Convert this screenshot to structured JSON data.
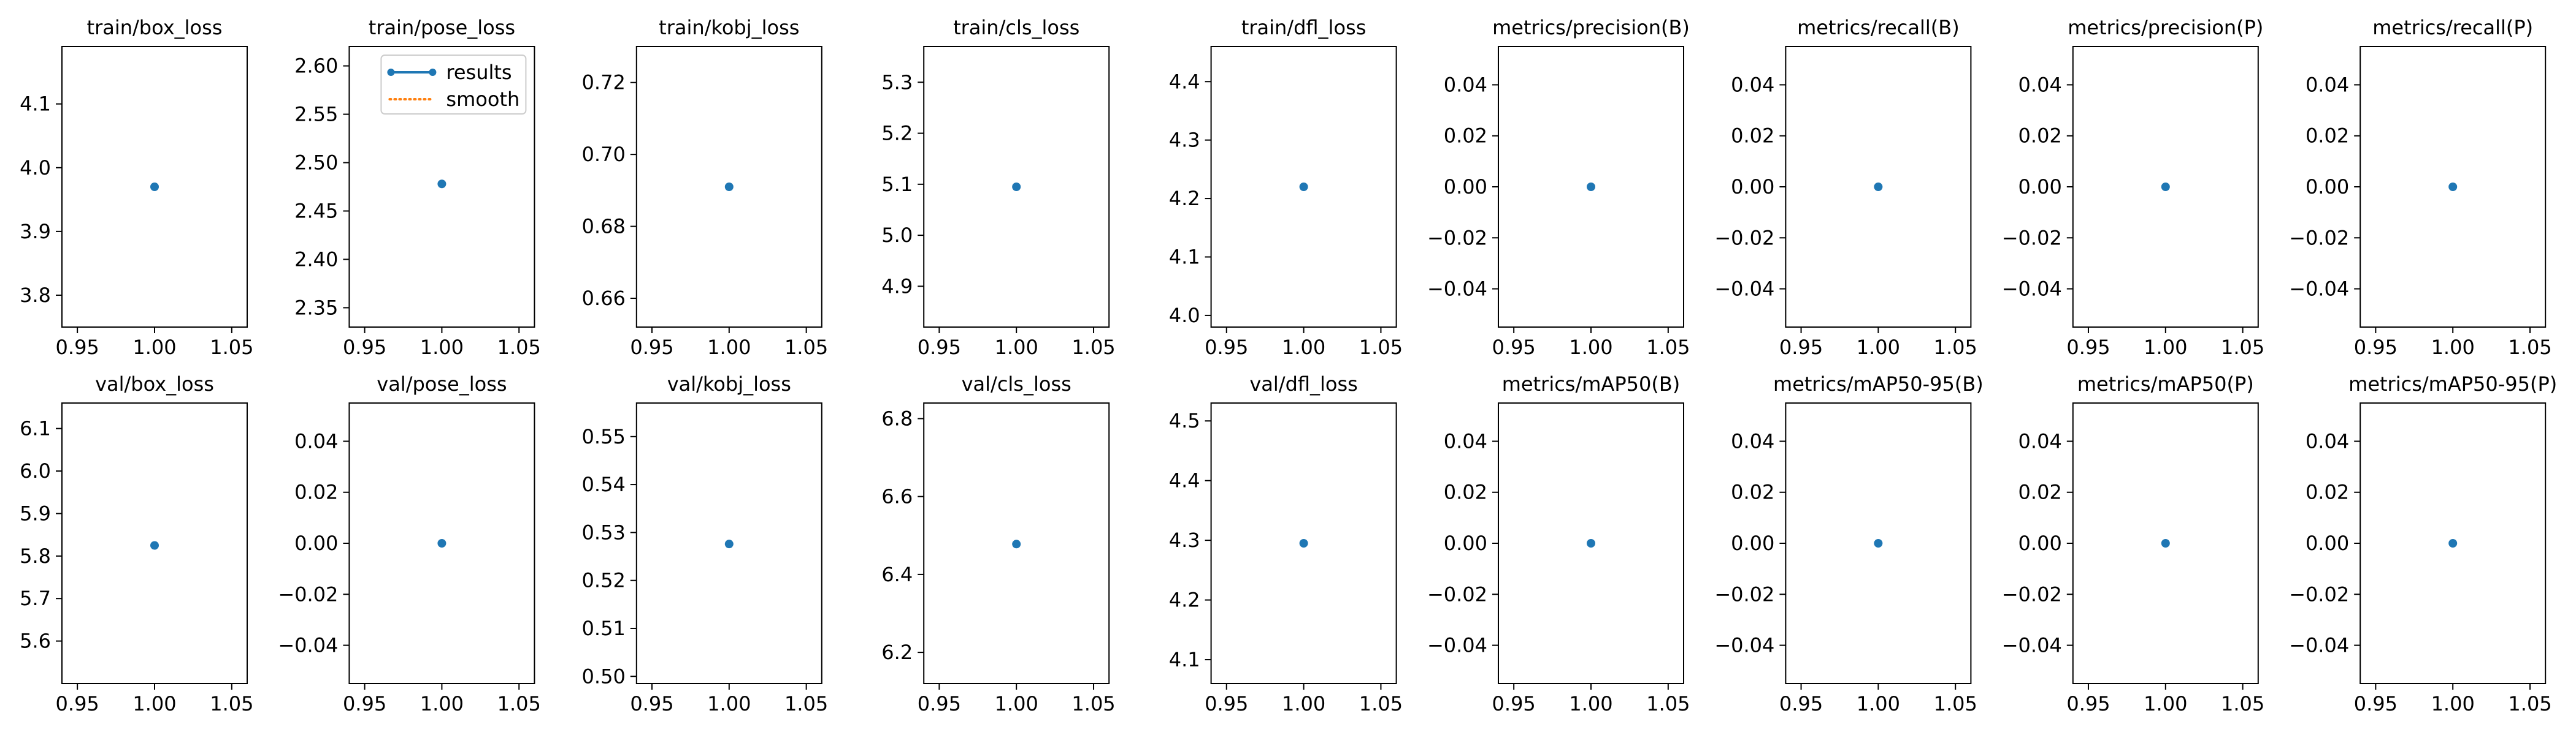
{
  "chart_data": [
    {
      "type": "line",
      "title": "train/box_loss",
      "x": [
        1
      ],
      "series": [
        {
          "name": "results",
          "values": [
            3.97
          ]
        }
      ],
      "xlim": [
        0.94,
        1.06
      ],
      "ylim": [
        3.75,
        4.19
      ],
      "xticks": [
        "0.95",
        "1.00",
        "1.05"
      ],
      "yticks": [
        "3.8",
        "3.9",
        "4.0",
        "4.1"
      ],
      "legend": null
    },
    {
      "type": "line",
      "title": "train/pose_loss",
      "x": [
        1
      ],
      "series": [
        {
          "name": "results",
          "values": [
            2.478
          ]
        }
      ],
      "xlim": [
        0.94,
        1.06
      ],
      "ylim": [
        2.33,
        2.62
      ],
      "xticks": [
        "0.95",
        "1.00",
        "1.05"
      ],
      "yticks": [
        "2.35",
        "2.40",
        "2.45",
        "2.50",
        "2.55",
        "2.60"
      ],
      "legend": {
        "placement": "top-right",
        "entries": [
          {
            "label": "results",
            "color": "#1f77b4",
            "style": "solid-marker"
          },
          {
            "label": "smooth",
            "color": "#ff7f0e",
            "style": "dotted"
          }
        ]
      }
    },
    {
      "type": "line",
      "title": "train/kobj_loss",
      "x": [
        1
      ],
      "series": [
        {
          "name": "results",
          "values": [
            0.691
          ]
        }
      ],
      "xlim": [
        0.94,
        1.06
      ],
      "ylim": [
        0.652,
        0.73
      ],
      "xticks": [
        "0.95",
        "1.00",
        "1.05"
      ],
      "yticks": [
        "0.66",
        "0.68",
        "0.70",
        "0.72"
      ],
      "legend": null
    },
    {
      "type": "line",
      "title": "train/cls_loss",
      "x": [
        1
      ],
      "series": [
        {
          "name": "results",
          "values": [
            5.095
          ]
        }
      ],
      "xlim": [
        0.94,
        1.06
      ],
      "ylim": [
        4.82,
        5.37
      ],
      "xticks": [
        "0.95",
        "1.00",
        "1.05"
      ],
      "yticks": [
        "4.9",
        "5.0",
        "5.1",
        "5.2",
        "5.3"
      ],
      "legend": null
    },
    {
      "type": "line",
      "title": "train/dfl_loss",
      "x": [
        1
      ],
      "series": [
        {
          "name": "results",
          "values": [
            4.22
          ]
        }
      ],
      "xlim": [
        0.94,
        1.06
      ],
      "ylim": [
        3.98,
        4.46
      ],
      "xticks": [
        "0.95",
        "1.00",
        "1.05"
      ],
      "yticks": [
        "4.0",
        "4.1",
        "4.2",
        "4.3",
        "4.4"
      ],
      "legend": null
    },
    {
      "type": "line",
      "title": "metrics/precision(B)",
      "x": [
        1
      ],
      "series": [
        {
          "name": "results",
          "values": [
            0.0
          ]
        }
      ],
      "xlim": [
        0.94,
        1.06
      ],
      "ylim": [
        -0.055,
        0.055
      ],
      "xticks": [
        "0.95",
        "1.00",
        "1.05"
      ],
      "yticks": [
        "−0.04",
        "−0.02",
        "0.00",
        "0.02",
        "0.04"
      ],
      "legend": null
    },
    {
      "type": "line",
      "title": "metrics/recall(B)",
      "x": [
        1
      ],
      "series": [
        {
          "name": "results",
          "values": [
            0.0
          ]
        }
      ],
      "xlim": [
        0.94,
        1.06
      ],
      "ylim": [
        -0.055,
        0.055
      ],
      "xticks": [
        "0.95",
        "1.00",
        "1.05"
      ],
      "yticks": [
        "−0.04",
        "−0.02",
        "0.00",
        "0.02",
        "0.04"
      ],
      "legend": null
    },
    {
      "type": "line",
      "title": "metrics/precision(P)",
      "x": [
        1
      ],
      "series": [
        {
          "name": "results",
          "values": [
            0.0
          ]
        }
      ],
      "xlim": [
        0.94,
        1.06
      ],
      "ylim": [
        -0.055,
        0.055
      ],
      "xticks": [
        "0.95",
        "1.00",
        "1.05"
      ],
      "yticks": [
        "−0.04",
        "−0.02",
        "0.00",
        "0.02",
        "0.04"
      ],
      "legend": null
    },
    {
      "type": "line",
      "title": "metrics/recall(P)",
      "x": [
        1
      ],
      "series": [
        {
          "name": "results",
          "values": [
            0.0
          ]
        }
      ],
      "xlim": [
        0.94,
        1.06
      ],
      "ylim": [
        -0.055,
        0.055
      ],
      "xticks": [
        "0.95",
        "1.00",
        "1.05"
      ],
      "yticks": [
        "−0.04",
        "−0.02",
        "0.00",
        "0.02",
        "0.04"
      ],
      "legend": null
    },
    {
      "type": "line",
      "title": "val/box_loss",
      "x": [
        1
      ],
      "series": [
        {
          "name": "results",
          "values": [
            5.825
          ]
        }
      ],
      "xlim": [
        0.94,
        1.06
      ],
      "ylim": [
        5.5,
        6.16
      ],
      "xticks": [
        "0.95",
        "1.00",
        "1.05"
      ],
      "yticks": [
        "5.6",
        "5.7",
        "5.8",
        "5.9",
        "6.0",
        "6.1"
      ],
      "legend": null
    },
    {
      "type": "line",
      "title": "val/pose_loss",
      "x": [
        1
      ],
      "series": [
        {
          "name": "results",
          "values": [
            0.0
          ]
        }
      ],
      "xlim": [
        0.94,
        1.06
      ],
      "ylim": [
        -0.055,
        0.055
      ],
      "xticks": [
        "0.95",
        "1.00",
        "1.05"
      ],
      "yticks": [
        "−0.04",
        "−0.02",
        "0.00",
        "0.02",
        "0.04"
      ],
      "legend": null
    },
    {
      "type": "line",
      "title": "val/kobj_loss",
      "x": [
        1
      ],
      "series": [
        {
          "name": "results",
          "values": [
            0.5276
          ]
        }
      ],
      "xlim": [
        0.94,
        1.06
      ],
      "ylim": [
        0.4985,
        0.557
      ],
      "xticks": [
        "0.95",
        "1.00",
        "1.05"
      ],
      "yticks": [
        "0.50",
        "0.51",
        "0.52",
        "0.53",
        "0.54",
        "0.55"
      ],
      "legend": null
    },
    {
      "type": "line",
      "title": "val/cls_loss",
      "x": [
        1
      ],
      "series": [
        {
          "name": "results",
          "values": [
            6.478
          ]
        }
      ],
      "xlim": [
        0.94,
        1.06
      ],
      "ylim": [
        6.12,
        6.84
      ],
      "xticks": [
        "0.95",
        "1.00",
        "1.05"
      ],
      "yticks": [
        "6.2",
        "6.4",
        "6.6",
        "6.8"
      ],
      "legend": null
    },
    {
      "type": "line",
      "title": "val/dfl_loss",
      "x": [
        1
      ],
      "series": [
        {
          "name": "results",
          "values": [
            4.295
          ]
        }
      ],
      "xlim": [
        0.94,
        1.06
      ],
      "ylim": [
        4.06,
        4.53
      ],
      "xticks": [
        "0.95",
        "1.00",
        "1.05"
      ],
      "yticks": [
        "4.1",
        "4.2",
        "4.3",
        "4.4",
        "4.5"
      ],
      "legend": null
    },
    {
      "type": "line",
      "title": "metrics/mAP50(B)",
      "x": [
        1
      ],
      "series": [
        {
          "name": "results",
          "values": [
            0.0
          ]
        }
      ],
      "xlim": [
        0.94,
        1.06
      ],
      "ylim": [
        -0.055,
        0.055
      ],
      "xticks": [
        "0.95",
        "1.00",
        "1.05"
      ],
      "yticks": [
        "−0.04",
        "−0.02",
        "0.00",
        "0.02",
        "0.04"
      ],
      "legend": null
    },
    {
      "type": "line",
      "title": "metrics/mAP50-95(B)",
      "x": [
        1
      ],
      "series": [
        {
          "name": "results",
          "values": [
            0.0
          ]
        }
      ],
      "xlim": [
        0.94,
        1.06
      ],
      "ylim": [
        -0.055,
        0.055
      ],
      "xticks": [
        "0.95",
        "1.00",
        "1.05"
      ],
      "yticks": [
        "−0.04",
        "−0.02",
        "0.00",
        "0.02",
        "0.04"
      ],
      "legend": null
    },
    {
      "type": "line",
      "title": "metrics/mAP50(P)",
      "x": [
        1
      ],
      "series": [
        {
          "name": "results",
          "values": [
            0.0
          ]
        }
      ],
      "xlim": [
        0.94,
        1.06
      ],
      "ylim": [
        -0.055,
        0.055
      ],
      "xticks": [
        "0.95",
        "1.00",
        "1.05"
      ],
      "yticks": [
        "−0.04",
        "−0.02",
        "0.00",
        "0.02",
        "0.04"
      ],
      "legend": null
    },
    {
      "type": "line",
      "title": "metrics/mAP50-95(P)",
      "x": [
        1
      ],
      "series": [
        {
          "name": "results",
          "values": [
            0.0
          ]
        }
      ],
      "xlim": [
        0.94,
        1.06
      ],
      "ylim": [
        -0.055,
        0.055
      ],
      "xticks": [
        "0.95",
        "1.00",
        "1.05"
      ],
      "yticks": [
        "−0.04",
        "−0.02",
        "0.00",
        "0.02",
        "0.04"
      ],
      "legend": null
    }
  ],
  "colors": {
    "results": "#1f77b4",
    "smooth": "#ff7f0e",
    "axes": "#000000",
    "background": "#ffffff"
  }
}
